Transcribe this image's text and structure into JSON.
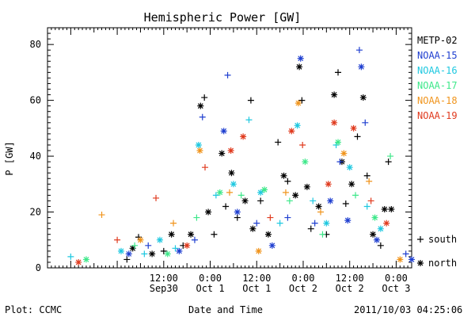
{
  "chart_data": {
    "type": "scatter",
    "title": "Hemispheric Power [GW]",
    "ylabel": "P [GW]",
    "xlabel": "Date and Time",
    "ylim": [
      0,
      86
    ],
    "xlim": [
      "2011-09-29 06:00",
      "2011-10-03 04:00"
    ],
    "yticks": [
      "0",
      "20",
      "40",
      "60",
      "80"
    ],
    "xticks": [
      {
        "time": "2011-09-30 12:00",
        "line1": "12:00",
        "line2": "Sep30"
      },
      {
        "time": "2011-10-01 00:00",
        "line1": "0:00",
        "line2": "Oct 1"
      },
      {
        "time": "2011-10-01 12:00",
        "line1": "12:00",
        "line2": "Oct 1"
      },
      {
        "time": "2011-10-02 00:00",
        "line1": "0:00",
        "line2": "Oct 2"
      },
      {
        "time": "2011-10-02 12:00",
        "line1": "12:00",
        "line2": "Oct 2"
      },
      {
        "time": "2011-10-03 00:00",
        "line1": "0:00",
        "line2": "Oct 3"
      }
    ],
    "legend_placement": "right",
    "marker_legend": [
      {
        "symbol": "+",
        "label": "south"
      },
      {
        "symbol": "*",
        "label": "north"
      }
    ],
    "series": [
      {
        "name": "METP-02",
        "color": "#000000",
        "points": [
          {
            "t": "2011-09-30 02:30",
            "y": 3,
            "m": "+"
          },
          {
            "t": "2011-09-30 04:00",
            "y": 7,
            "m": "*"
          },
          {
            "t": "2011-09-30 05:30",
            "y": 11,
            "m": "+"
          },
          {
            "t": "2011-09-30 09:00",
            "y": 5,
            "m": "*"
          },
          {
            "t": "2011-09-30 12:00",
            "y": 6,
            "m": "+"
          },
          {
            "t": "2011-09-30 14:00",
            "y": 12,
            "m": "*"
          },
          {
            "t": "2011-09-30 17:00",
            "y": 8,
            "m": "+"
          },
          {
            "t": "2011-09-30 19:00",
            "y": 12,
            "m": "*"
          },
          {
            "t": "2011-09-30 21:30",
            "y": 58,
            "m": "*"
          },
          {
            "t": "2011-09-30 22:30",
            "y": 61,
            "m": "+"
          },
          {
            "t": "2011-09-30 23:30",
            "y": 20,
            "m": "*"
          },
          {
            "t": "2011-10-01 01:00",
            "y": 12,
            "m": "+"
          },
          {
            "t": "2011-10-01 03:00",
            "y": 41,
            "m": "*"
          },
          {
            "t": "2011-10-01 04:00",
            "y": 22,
            "m": "+"
          },
          {
            "t": "2011-10-01 05:30",
            "y": 34,
            "m": "*"
          },
          {
            "t": "2011-10-01 07:00",
            "y": 18,
            "m": "+"
          },
          {
            "t": "2011-10-01 09:00",
            "y": 24,
            "m": "*"
          },
          {
            "t": "2011-10-01 10:30",
            "y": 60,
            "m": "+"
          },
          {
            "t": "2011-10-01 11:00",
            "y": 14,
            "m": "*"
          },
          {
            "t": "2011-10-01 13:00",
            "y": 24,
            "m": "+"
          },
          {
            "t": "2011-10-01 15:00",
            "y": 12,
            "m": "*"
          },
          {
            "t": "2011-10-01 17:30",
            "y": 45,
            "m": "+"
          },
          {
            "t": "2011-10-01 19:00",
            "y": 33,
            "m": "*"
          },
          {
            "t": "2011-10-01 20:00",
            "y": 31,
            "m": "+"
          },
          {
            "t": "2011-10-01 22:00",
            "y": 26,
            "m": "*"
          },
          {
            "t": "2011-10-01 23:00",
            "y": 72,
            "m": "*"
          },
          {
            "t": "2011-10-01 23:40",
            "y": 60,
            "m": "+"
          },
          {
            "t": "2011-10-02 01:00",
            "y": 29,
            "m": "*"
          },
          {
            "t": "2011-10-02 02:00",
            "y": 14,
            "m": "+"
          },
          {
            "t": "2011-10-02 04:00",
            "y": 22,
            "m": "*"
          },
          {
            "t": "2011-10-02 06:00",
            "y": 12,
            "m": "+"
          },
          {
            "t": "2011-10-02 08:00",
            "y": 62,
            "m": "*"
          },
          {
            "t": "2011-10-02 09:00",
            "y": 70,
            "m": "+"
          },
          {
            "t": "2011-10-02 10:00",
            "y": 38,
            "m": "*"
          },
          {
            "t": "2011-10-02 11:00",
            "y": 23,
            "m": "+"
          },
          {
            "t": "2011-10-02 12:30",
            "y": 30,
            "m": "*"
          },
          {
            "t": "2011-10-02 14:00",
            "y": 47,
            "m": "+"
          },
          {
            "t": "2011-10-02 15:30",
            "y": 61,
            "m": "*"
          },
          {
            "t": "2011-10-02 16:30",
            "y": 33,
            "m": "+"
          },
          {
            "t": "2011-10-02 18:00",
            "y": 12,
            "m": "*"
          },
          {
            "t": "2011-10-02 20:00",
            "y": 8,
            "m": "+"
          },
          {
            "t": "2011-10-02 21:00",
            "y": 21,
            "m": "*"
          },
          {
            "t": "2011-10-02 22:00",
            "y": 38,
            "m": "+"
          },
          {
            "t": "2011-10-02 22:45",
            "y": 21,
            "m": "*"
          }
        ]
      },
      {
        "name": "NOAA-15",
        "color": "#1f3fd0",
        "points": [
          {
            "t": "2011-09-30 03:00",
            "y": 5,
            "m": "*"
          },
          {
            "t": "2011-09-30 08:00",
            "y": 8,
            "m": "+"
          },
          {
            "t": "2011-09-30 16:00",
            "y": 6,
            "m": "*"
          },
          {
            "t": "2011-09-30 20:00",
            "y": 10,
            "m": "+"
          },
          {
            "t": "2011-09-30 22:00",
            "y": 54,
            "m": "+"
          },
          {
            "t": "2011-10-01 03:30",
            "y": 49,
            "m": "*"
          },
          {
            "t": "2011-10-01 04:30",
            "y": 69,
            "m": "+"
          },
          {
            "t": "2011-10-01 07:00",
            "y": 20,
            "m": "*"
          },
          {
            "t": "2011-10-01 12:00",
            "y": 16,
            "m": "+"
          },
          {
            "t": "2011-10-01 16:00",
            "y": 8,
            "m": "*"
          },
          {
            "t": "2011-10-01 20:00",
            "y": 18,
            "m": "+"
          },
          {
            "t": "2011-10-01 23:20",
            "y": 75,
            "m": "*"
          },
          {
            "t": "2011-10-02 03:00",
            "y": 16,
            "m": "+"
          },
          {
            "t": "2011-10-02 07:00",
            "y": 24,
            "m": "*"
          },
          {
            "t": "2011-10-02 09:30",
            "y": 38,
            "m": "+"
          },
          {
            "t": "2011-10-02 11:30",
            "y": 17,
            "m": "*"
          },
          {
            "t": "2011-10-02 14:30",
            "y": 78,
            "m": "+"
          },
          {
            "t": "2011-10-02 15:00",
            "y": 72,
            "m": "*"
          },
          {
            "t": "2011-10-02 16:00",
            "y": 52,
            "m": "+"
          },
          {
            "t": "2011-10-02 19:00",
            "y": 10,
            "m": "*"
          },
          {
            "t": "2011-10-03 02:30",
            "y": 5,
            "m": "+"
          },
          {
            "t": "2011-10-03 04:00",
            "y": 3,
            "m": "*"
          }
        ]
      },
      {
        "name": "NOAA-16",
        "color": "#1ec8e0",
        "points": [
          {
            "t": "2011-09-29 12:00",
            "y": 4,
            "m": "+"
          },
          {
            "t": "2011-09-30 01:00",
            "y": 6,
            "m": "*"
          },
          {
            "t": "2011-09-30 07:00",
            "y": 5,
            "m": "+"
          },
          {
            "t": "2011-09-30 11:00",
            "y": 10,
            "m": "*"
          },
          {
            "t": "2011-09-30 15:00",
            "y": 7,
            "m": "+"
          },
          {
            "t": "2011-09-30 21:00",
            "y": 44,
            "m": "*"
          },
          {
            "t": "2011-10-01 01:30",
            "y": 26,
            "m": "+"
          },
          {
            "t": "2011-10-01 06:00",
            "y": 30,
            "m": "*"
          },
          {
            "t": "2011-10-01 10:00",
            "y": 53,
            "m": "+"
          },
          {
            "t": "2011-10-01 13:00",
            "y": 27,
            "m": "*"
          },
          {
            "t": "2011-10-01 18:00",
            "y": 16,
            "m": "+"
          },
          {
            "t": "2011-10-01 22:30",
            "y": 51,
            "m": "*"
          },
          {
            "t": "2011-10-02 02:30",
            "y": 24,
            "m": "+"
          },
          {
            "t": "2011-10-02 06:00",
            "y": 16,
            "m": "*"
          },
          {
            "t": "2011-10-02 08:30",
            "y": 44,
            "m": "+"
          },
          {
            "t": "2011-10-02 12:00",
            "y": 36,
            "m": "*"
          },
          {
            "t": "2011-10-02 16:30",
            "y": 22,
            "m": "+"
          },
          {
            "t": "2011-10-02 20:00",
            "y": 14,
            "m": "*"
          }
        ]
      },
      {
        "name": "NOAA-17",
        "color": "#3ee88a",
        "points": [
          {
            "t": "2011-09-29 16:00",
            "y": 3,
            "m": "*"
          },
          {
            "t": "2011-09-30 04:30",
            "y": 8,
            "m": "+"
          },
          {
            "t": "2011-09-30 13:00",
            "y": 5,
            "m": "*"
          },
          {
            "t": "2011-09-30 20:30",
            "y": 18,
            "m": "+"
          },
          {
            "t": "2011-10-01 02:30",
            "y": 27,
            "m": "*"
          },
          {
            "t": "2011-10-01 08:00",
            "y": 26,
            "m": "+"
          },
          {
            "t": "2011-10-01 14:00",
            "y": 28,
            "m": "*"
          },
          {
            "t": "2011-10-01 20:30",
            "y": 24,
            "m": "+"
          },
          {
            "t": "2011-10-02 00:30",
            "y": 38,
            "m": "*"
          },
          {
            "t": "2011-10-02 05:00",
            "y": 12,
            "m": "+"
          },
          {
            "t": "2011-10-02 09:00",
            "y": 45,
            "m": "*"
          },
          {
            "t": "2011-10-02 13:30",
            "y": 26,
            "m": "+"
          },
          {
            "t": "2011-10-02 18:30",
            "y": 18,
            "m": "*"
          },
          {
            "t": "2011-10-02 22:30",
            "y": 40,
            "m": "+"
          }
        ]
      },
      {
        "name": "NOAA-18",
        "color": "#f0941c",
        "points": [
          {
            "t": "2011-09-29 20:00",
            "y": 19,
            "m": "+"
          },
          {
            "t": "2011-09-30 06:00",
            "y": 10,
            "m": "*"
          },
          {
            "t": "2011-09-30 14:30",
            "y": 16,
            "m": "+"
          },
          {
            "t": "2011-09-30 21:20",
            "y": 42,
            "m": "*"
          },
          {
            "t": "2011-10-01 05:00",
            "y": 27,
            "m": "+"
          },
          {
            "t": "2011-10-01 12:30",
            "y": 6,
            "m": "*"
          },
          {
            "t": "2011-10-01 19:30",
            "y": 27,
            "m": "+"
          },
          {
            "t": "2011-10-01 22:45",
            "y": 59,
            "m": "*"
          },
          {
            "t": "2011-10-02 04:30",
            "y": 20,
            "m": "+"
          },
          {
            "t": "2011-10-02 10:30",
            "y": 41,
            "m": "*"
          },
          {
            "t": "2011-10-02 17:00",
            "y": 31,
            "m": "+"
          },
          {
            "t": "2011-10-03 01:00",
            "y": 3,
            "m": "*"
          }
        ]
      },
      {
        "name": "NOAA-19",
        "color": "#e03a1e",
        "points": [
          {
            "t": "2011-09-29 14:00",
            "y": 2,
            "m": "*"
          },
          {
            "t": "2011-09-30 00:00",
            "y": 10,
            "m": "+"
          },
          {
            "t": "2011-09-30 10:00",
            "y": 25,
            "m": "+"
          },
          {
            "t": "2011-09-30 18:00",
            "y": 8,
            "m": "*"
          },
          {
            "t": "2011-09-30 22:40",
            "y": 36,
            "m": "+"
          },
          {
            "t": "2011-10-01 05:20",
            "y": 42,
            "m": "*"
          },
          {
            "t": "2011-10-01 08:30",
            "y": 47,
            "m": "*"
          },
          {
            "t": "2011-10-01 15:30",
            "y": 18,
            "m": "+"
          },
          {
            "t": "2011-10-01 21:00",
            "y": 49,
            "m": "*"
          },
          {
            "t": "2011-10-01 23:50",
            "y": 44,
            "m": "+"
          },
          {
            "t": "2011-10-02 06:30",
            "y": 30,
            "m": "*"
          },
          {
            "t": "2011-10-02 08:00",
            "y": 52,
            "m": "*"
          },
          {
            "t": "2011-10-02 13:00",
            "y": 50,
            "m": "*"
          },
          {
            "t": "2011-10-02 17:30",
            "y": 24,
            "m": "+"
          },
          {
            "t": "2011-10-02 21:30",
            "y": 16,
            "m": "*"
          }
        ]
      }
    ]
  },
  "footer": {
    "plot_label": "Plot: CCMC",
    "timestamp": "2011/10/03 04:25:06"
  }
}
